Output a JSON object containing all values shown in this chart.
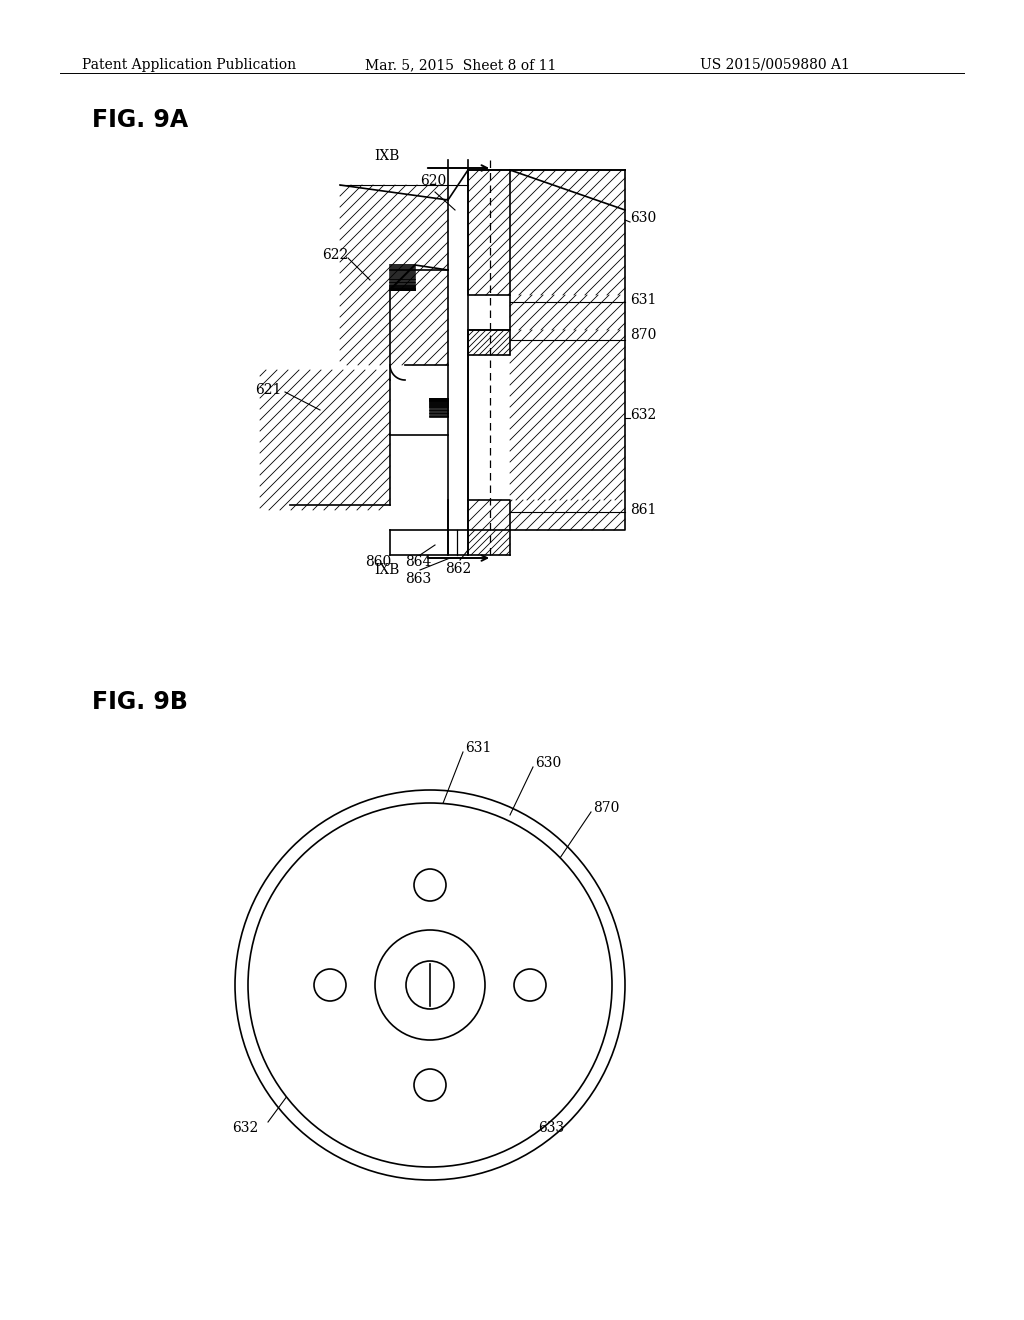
{
  "bg_color": "#ffffff",
  "header_left": "Patent Application Publication",
  "header_mid": "Mar. 5, 2015  Sheet 8 of 11",
  "header_right": "US 2015/0059880 A1",
  "fig9a_label": "FIG. 9A",
  "fig9b_label": "FIG. 9B"
}
